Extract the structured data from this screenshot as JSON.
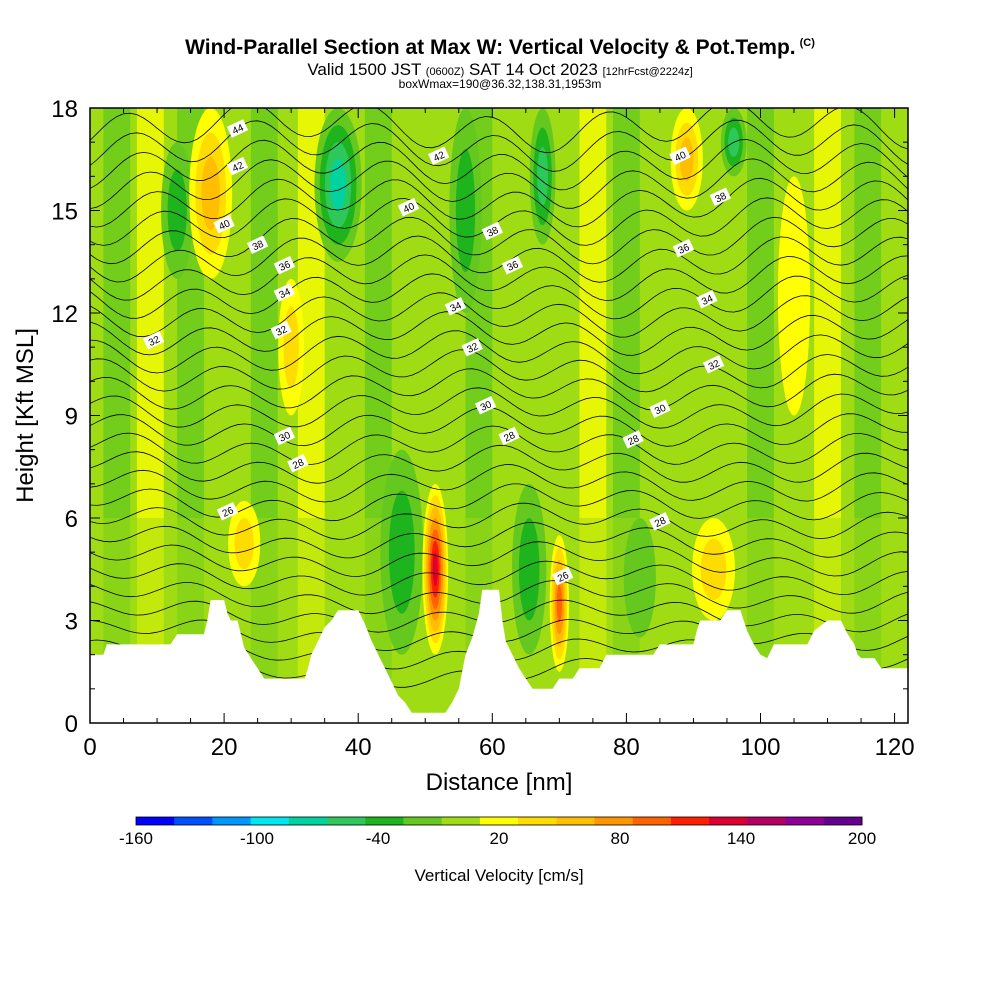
{
  "header": {
    "title": "Wind-Parallel Section at Max W: Vertical Velocity & Pot.Temp.",
    "copyright": "(C)",
    "subtitle_main": "Valid 1500 JST",
    "subtitle_utc": "(0600Z)",
    "subtitle_date": "SAT 14 Oct 2023",
    "subtitle_fcst": "[12hrFcst@2224z]",
    "subline": "boxWmax=190@36.32,138.31,1953m"
  },
  "chart_data": {
    "type": "heatmap",
    "title": "Wind-Parallel Section at Max W: Vertical Velocity & Pot.Temp.",
    "xlabel": "Distance [nm]",
    "ylabel": "Height [Kft MSL]",
    "xlim": [
      0,
      122
    ],
    "ylim": [
      0,
      18
    ],
    "x_ticks": [
      0,
      20,
      40,
      60,
      80,
      100,
      120
    ],
    "y_ticks": [
      0,
      3,
      6,
      9,
      12,
      15,
      18
    ],
    "colorbar": {
      "label": "Vertical Velocity [cm/s]",
      "tick_labels": [
        -160,
        -100,
        -40,
        20,
        80,
        140,
        200
      ],
      "bounds": [
        -160,
        -140,
        -120,
        -100,
        -80,
        -60,
        -40,
        -20,
        0,
        20,
        40,
        60,
        80,
        100,
        120,
        140,
        160,
        180,
        200
      ],
      "colors": [
        "#0000ff",
        "#0050ff",
        "#0096ff",
        "#00e6f0",
        "#00d2a0",
        "#2ec85a",
        "#1eb41e",
        "#64c81e",
        "#a0dc14",
        "#ffff00",
        "#ffdc00",
        "#ffbe00",
        "#ff9600",
        "#ff6400",
        "#ff1e00",
        "#dc0032",
        "#b40064",
        "#8c0096",
        "#64008c"
      ]
    },
    "terrain": [
      [
        0,
        2.0
      ],
      [
        2,
        2.0
      ],
      [
        2.5,
        2.3
      ],
      [
        12,
        2.3
      ],
      [
        13,
        2.6
      ],
      [
        17,
        2.6
      ],
      [
        17.5,
        3.0
      ],
      [
        18,
        3.6
      ],
      [
        20,
        3.6
      ],
      [
        20.5,
        3.2
      ],
      [
        21,
        3.0
      ],
      [
        22,
        3.0
      ],
      [
        22.5,
        2.6
      ],
      [
        23,
        2.2
      ],
      [
        24,
        1.9
      ],
      [
        25,
        1.6
      ],
      [
        26,
        1.3
      ],
      [
        32,
        1.3
      ],
      [
        32.5,
        1.6
      ],
      [
        33,
        2.0
      ],
      [
        34,
        2.4
      ],
      [
        35,
        2.8
      ],
      [
        36,
        3.0
      ],
      [
        37,
        3.3
      ],
      [
        40,
        3.3
      ],
      [
        41,
        2.9
      ],
      [
        42,
        2.4
      ],
      [
        43,
        2.0
      ],
      [
        44,
        1.6
      ],
      [
        45,
        1.2
      ],
      [
        46,
        0.8
      ],
      [
        47,
        0.6
      ],
      [
        48,
        0.3
      ],
      [
        53,
        0.3
      ],
      [
        54,
        0.6
      ],
      [
        55,
        1.0
      ],
      [
        55.5,
        1.5
      ],
      [
        56,
        2.0
      ],
      [
        57,
        2.5
      ],
      [
        58,
        3.2
      ],
      [
        58.5,
        3.9
      ],
      [
        61,
        3.9
      ],
      [
        61.5,
        3.0
      ],
      [
        62,
        2.4
      ],
      [
        63,
        2.0
      ],
      [
        64,
        1.6
      ],
      [
        65,
        1.3
      ],
      [
        66,
        1.0
      ],
      [
        69,
        1.0
      ],
      [
        70,
        1.3
      ],
      [
        72,
        1.3
      ],
      [
        73,
        1.6
      ],
      [
        76,
        1.6
      ],
      [
        77,
        2.0
      ],
      [
        84,
        2.0
      ],
      [
        85,
        2.3
      ],
      [
        90,
        2.3
      ],
      [
        90.5,
        2.7
      ],
      [
        91,
        3.0
      ],
      [
        94,
        3.0
      ],
      [
        95,
        3.3
      ],
      [
        97,
        3.3
      ],
      [
        97.5,
        3.0
      ],
      [
        98,
        2.7
      ],
      [
        99,
        2.3
      ],
      [
        100,
        2.0
      ],
      [
        101,
        1.9
      ],
      [
        102,
        2.3
      ],
      [
        107,
        2.3
      ],
      [
        108,
        2.7
      ],
      [
        110,
        3.0
      ],
      [
        112,
        3.0
      ],
      [
        113,
        2.6
      ],
      [
        114,
        2.3
      ],
      [
        114.5,
        2.0
      ],
      [
        115,
        1.9
      ],
      [
        117,
        1.9
      ],
      [
        118,
        1.6
      ],
      [
        122,
        1.6
      ]
    ],
    "isentrope_labels": [
      {
        "text": "44",
        "x": 22,
        "y": 17.4
      },
      {
        "text": "42",
        "x": 22,
        "y": 16.3
      },
      {
        "text": "40",
        "x": 20,
        "y": 14.6
      },
      {
        "text": "38",
        "x": 25,
        "y": 14.0
      },
      {
        "text": "36",
        "x": 29,
        "y": 13.4
      },
      {
        "text": "34",
        "x": 29,
        "y": 12.6
      },
      {
        "text": "32",
        "x": 28.5,
        "y": 11.5
      },
      {
        "text": "32",
        "x": 9.5,
        "y": 11.2
      },
      {
        "text": "30",
        "x": 29,
        "y": 8.4
      },
      {
        "text": "28",
        "x": 31,
        "y": 7.6
      },
      {
        "text": "26",
        "x": 20.5,
        "y": 6.2
      },
      {
        "text": "42",
        "x": 52,
        "y": 16.6
      },
      {
        "text": "40",
        "x": 47.5,
        "y": 15.1
      },
      {
        "text": "38",
        "x": 60,
        "y": 14.4
      },
      {
        "text": "36",
        "x": 63,
        "y": 13.4
      },
      {
        "text": "34",
        "x": 54.5,
        "y": 12.2
      },
      {
        "text": "32",
        "x": 57,
        "y": 11.0
      },
      {
        "text": "30",
        "x": 59,
        "y": 9.3
      },
      {
        "text": "28",
        "x": 62.5,
        "y": 8.4
      },
      {
        "text": "40",
        "x": 88,
        "y": 16.6
      },
      {
        "text": "38",
        "x": 94,
        "y": 15.4
      },
      {
        "text": "36",
        "x": 88.5,
        "y": 13.9
      },
      {
        "text": "34",
        "x": 92,
        "y": 12.4
      },
      {
        "text": "32",
        "x": 93,
        "y": 10.5
      },
      {
        "text": "30",
        "x": 85,
        "y": 9.2
      },
      {
        "text": "28",
        "x": 81,
        "y": 8.3
      },
      {
        "text": "28",
        "x": 85,
        "y": 5.9
      },
      {
        "text": "26",
        "x": 70.5,
        "y": 4.3
      }
    ],
    "updrafts": [
      {
        "x": 18,
        "y0": 13,
        "y1": 18,
        "w": 2,
        "v": 60
      },
      {
        "x": 51.5,
        "y0": 2,
        "y1": 7,
        "w": 1.2,
        "v": 130
      },
      {
        "x": 70,
        "y0": 1.5,
        "y1": 5.5,
        "w": 0.9,
        "v": 100
      },
      {
        "x": 89,
        "y0": 15,
        "y1": 18,
        "w": 1.5,
        "v": 60
      },
      {
        "x": 23,
        "y0": 4,
        "y1": 6.5,
        "w": 1.5,
        "v": 40
      },
      {
        "x": 93,
        "y0": 3,
        "y1": 6,
        "w": 2,
        "v": 30
      },
      {
        "x": 30,
        "y0": 9,
        "y1": 13,
        "w": 1.2,
        "v": 30
      },
      {
        "x": 105,
        "y0": 9,
        "y1": 16,
        "w": 1.5,
        "v": 25
      }
    ],
    "downdrafts": [
      {
        "x": 37,
        "y0": 13.5,
        "y1": 18,
        "w": 2.2,
        "v": -80
      },
      {
        "x": 67.5,
        "y0": 14,
        "y1": 18,
        "w": 1.2,
        "v": -60
      },
      {
        "x": 96,
        "y0": 16,
        "y1": 18,
        "w": 1.2,
        "v": -60
      },
      {
        "x": 46.5,
        "y0": 2,
        "y1": 8,
        "w": 2,
        "v": -40
      },
      {
        "x": 65.5,
        "y0": 2,
        "y1": 7,
        "w": 1.6,
        "v": -40
      },
      {
        "x": 13,
        "y0": 13,
        "y1": 17,
        "w": 1.5,
        "v": -40
      },
      {
        "x": 56,
        "y0": 12,
        "y1": 18,
        "w": 1.5,
        "v": -40
      },
      {
        "x": 82,
        "y0": 2.5,
        "y1": 6,
        "w": 1.5,
        "v": -20
      }
    ],
    "grid": false
  }
}
